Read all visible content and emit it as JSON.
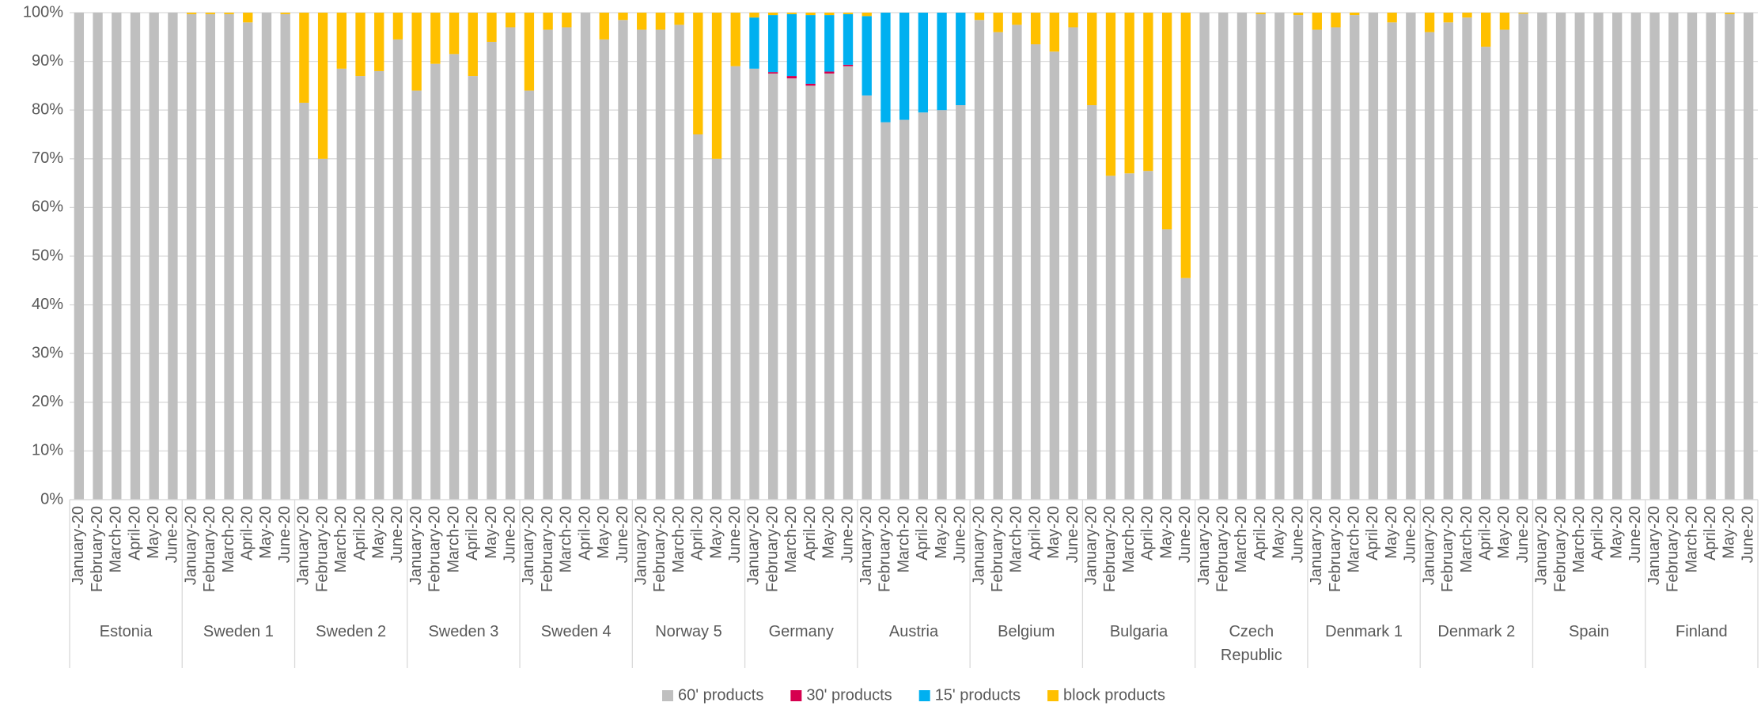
{
  "chart_data": {
    "type": "stacked_bar",
    "groups": [
      "Estonia",
      "Sweden 1",
      "Sweden 2",
      "Sweden 3",
      "Sweden 4",
      "Norway 5",
      "Germany",
      "Austria",
      "Belgium",
      "Bulgaria",
      "Czech Republic",
      "Denmark 1",
      "Denmark 2",
      "Spain",
      "Finland"
    ],
    "categories": [
      "January-20",
      "February-20",
      "March-20",
      "April-20",
      "May-20",
      "June-20",
      "January-20",
      "February-20",
      "March-20",
      "April-20",
      "May-20",
      "June-20",
      "January-20",
      "February-20",
      "March-20",
      "April-20",
      "May-20",
      "June-20",
      "January-20",
      "February-20",
      "March-20",
      "April-20",
      "May-20",
      "June-20",
      "January-20",
      "February-20",
      "March-20",
      "April-20",
      "May-20",
      "June-20",
      "January-20",
      "February-20",
      "March-20",
      "April-20",
      "May-20",
      "June-20",
      "January-20",
      "February-20",
      "March-20",
      "April-20",
      "May-20",
      "June-20",
      "January-20",
      "February-20",
      "March-20",
      "April-20",
      "May-20",
      "June-20",
      "January-20",
      "February-20",
      "March-20",
      "April-20",
      "May-20",
      "June-20",
      "January-20",
      "February-20",
      "March-20",
      "April-20",
      "May-20",
      "June-20",
      "January-20",
      "February-20",
      "March-20",
      "April-20",
      "May-20",
      "June-20",
      "January-20",
      "February-20",
      "March-20",
      "April-20",
      "May-20",
      "June-20",
      "January-20",
      "February-20",
      "March-20",
      "April-20",
      "May-20",
      "June-20",
      "January-20",
      "February-20",
      "March-20",
      "April-20",
      "May-20",
      "June-20",
      "January-20",
      "February-20",
      "March-20",
      "April-20",
      "May-20",
      "June-20"
    ],
    "series": [
      {
        "name": "60' products",
        "color": "#bfbfbf",
        "values": [
          100,
          100,
          100,
          100,
          100,
          100,
          99.7,
          99.7,
          99.7,
          98,
          100,
          99.7,
          81.5,
          70,
          88.5,
          87,
          88,
          94.5,
          84,
          89.5,
          91.5,
          87,
          94,
          97,
          84,
          96.5,
          97,
          100,
          94.5,
          98.5,
          96.5,
          96.5,
          97.5,
          75,
          70,
          89,
          88.5,
          87.5,
          86.5,
          85,
          87.5,
          89,
          83,
          77.5,
          78,
          79.5,
          80,
          81,
          98.5,
          96,
          97.5,
          93.5,
          92,
          97,
          81,
          66.5,
          67,
          67.5,
          55.5,
          45.5,
          100,
          100,
          100,
          99.7,
          100,
          99.5,
          96.5,
          97,
          99.5,
          100,
          98,
          100,
          96,
          98,
          99,
          93,
          96.5,
          99.8,
          100,
          100,
          100,
          100,
          100,
          100,
          100,
          100,
          100,
          100,
          99.7,
          100
        ]
      },
      {
        "name": "30' products",
        "color": "#d6004f",
        "values": [
          0,
          0,
          0,
          0,
          0,
          0,
          0,
          0,
          0,
          0,
          0,
          0,
          0,
          0,
          0,
          0,
          0,
          0,
          0,
          0,
          0,
          0,
          0,
          0,
          0,
          0,
          0,
          0,
          0,
          0,
          0,
          0,
          0,
          0,
          0,
          0,
          0,
          0.3,
          0.5,
          0.4,
          0.4,
          0.3,
          0,
          0,
          0,
          0,
          0,
          0,
          0,
          0,
          0,
          0,
          0,
          0,
          0,
          0,
          0,
          0,
          0,
          0,
          0,
          0,
          0,
          0,
          0,
          0,
          0,
          0,
          0,
          0,
          0,
          0,
          0,
          0,
          0,
          0,
          0,
          0,
          0,
          0,
          0,
          0,
          0,
          0,
          0,
          0,
          0,
          0,
          0,
          0
        ]
      },
      {
        "name": "15' products",
        "color": "#00b0f0",
        "values": [
          0,
          0,
          0,
          0,
          0,
          0,
          0,
          0,
          0,
          0,
          0,
          0,
          0,
          0,
          0,
          0,
          0,
          0,
          0,
          0,
          0,
          0,
          0,
          0,
          0,
          0,
          0,
          0,
          0,
          0,
          0,
          0,
          0,
          0,
          0,
          0,
          10.5,
          11.7,
          12.7,
          14.1,
          11.6,
          10.4,
          16.3,
          22.5,
          22,
          20.5,
          20,
          19,
          0,
          0,
          0,
          0,
          0,
          0,
          0,
          0,
          0,
          0,
          0,
          0,
          0,
          0,
          0,
          0,
          0,
          0,
          0,
          0,
          0,
          0,
          0,
          0,
          0,
          0,
          0,
          0,
          0,
          0,
          0,
          0,
          0,
          0,
          0,
          0,
          0,
          0,
          0,
          0,
          0,
          0
        ]
      },
      {
        "name": "block products",
        "color": "#ffc000",
        "values": [
          0,
          0,
          0,
          0,
          0,
          0,
          0.3,
          0.3,
          0.3,
          2,
          0,
          0.3,
          18.5,
          30,
          11.5,
          13,
          12,
          5.5,
          16,
          10.5,
          8.5,
          13,
          6,
          3,
          16,
          3.5,
          3,
          0,
          5.5,
          1.5,
          3.5,
          3.5,
          2.5,
          25,
          30,
          11,
          1,
          0.5,
          0.3,
          0.5,
          0.5,
          0.3,
          0.7,
          0,
          0,
          0,
          0,
          0,
          1.5,
          4,
          2.5,
          6.5,
          8,
          3,
          19,
          33.5,
          33,
          32.5,
          44.5,
          54.5,
          0,
          0,
          0,
          0.3,
          0,
          0.5,
          3.5,
          3,
          0.5,
          0,
          2,
          0,
          4,
          2,
          1,
          7,
          3.5,
          0.2,
          0,
          0,
          0,
          0,
          0,
          0,
          0,
          0,
          0,
          0,
          0.3,
          0
        ]
      }
    ],
    "ylim": [
      0,
      100
    ],
    "yticks": [
      {
        "value": 0,
        "label": "0%"
      },
      {
        "value": 10,
        "label": "10%"
      },
      {
        "value": 20,
        "label": "20%"
      },
      {
        "value": 30,
        "label": "30%"
      },
      {
        "value": 40,
        "label": "40%"
      },
      {
        "value": 50,
        "label": "50%"
      },
      {
        "value": 60,
        "label": "60%"
      },
      {
        "value": 70,
        "label": "70%"
      },
      {
        "value": 80,
        "label": "80%"
      },
      {
        "value": 90,
        "label": "90%"
      },
      {
        "value": 100,
        "label": "100%"
      }
    ],
    "grid": true,
    "legend": "bottom"
  }
}
